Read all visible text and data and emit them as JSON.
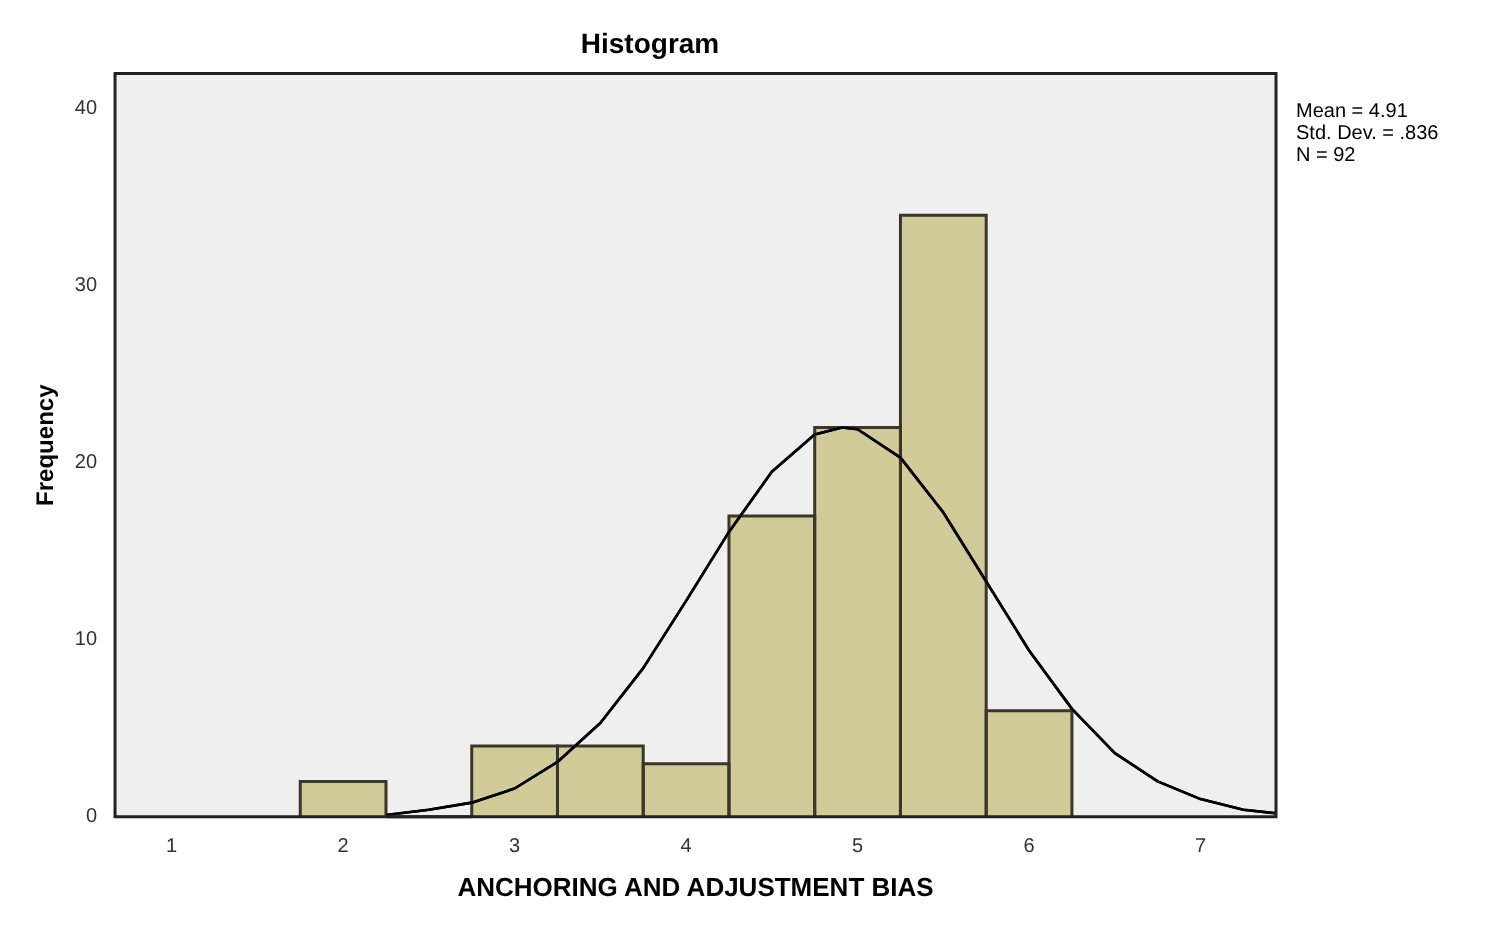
{
  "chart_data": {
    "type": "histogram",
    "title": "Histogram",
    "xlabel": "ANCHORING AND ADJUSTMENT BIAS",
    "ylabel": "Frequency",
    "bins": [
      1.75,
      2.25,
      2.75,
      3.25,
      3.75,
      4.25,
      4.75,
      5.25,
      5.75,
      6.25
    ],
    "values": [
      2,
      0,
      4,
      4,
      3,
      17,
      22,
      34,
      6
    ],
    "color": "#d0cb98",
    "series": [
      {
        "type": "line",
        "color": "#000000",
        "x": [
          2.25,
          2.5,
          2.75,
          3,
          3.25,
          3.5,
          3.75,
          4,
          4.25,
          4.5,
          4.75,
          4.91,
          5,
          5.25,
          5.5,
          5.75,
          6,
          6.25,
          6.5,
          6.75,
          7,
          7.25,
          7.44
        ],
        "values": [
          0.1,
          0.4,
          0.8,
          1.6,
          3.1,
          5.3,
          8.4,
          12.2,
          16.1,
          19.5,
          21.6,
          22,
          21.9,
          20.3,
          17.2,
          13.3,
          9.4,
          6.1,
          3.6,
          2.0,
          1.0,
          0.4,
          0.2
        ]
      }
    ],
    "xlim": [
      0.67,
      7.44
    ],
    "xticks": [
      1,
      2,
      3,
      4,
      5,
      6,
      7
    ],
    "ylim": [
      0,
      42
    ],
    "yticks": [
      0,
      10,
      20,
      30,
      40
    ],
    "grid": false,
    "legend": false,
    "marker": "none",
    "line_style": "solid",
    "annotations": [
      "Mean = 4.91",
      "Std. Dev. = .836",
      "N = 92"
    ]
  }
}
